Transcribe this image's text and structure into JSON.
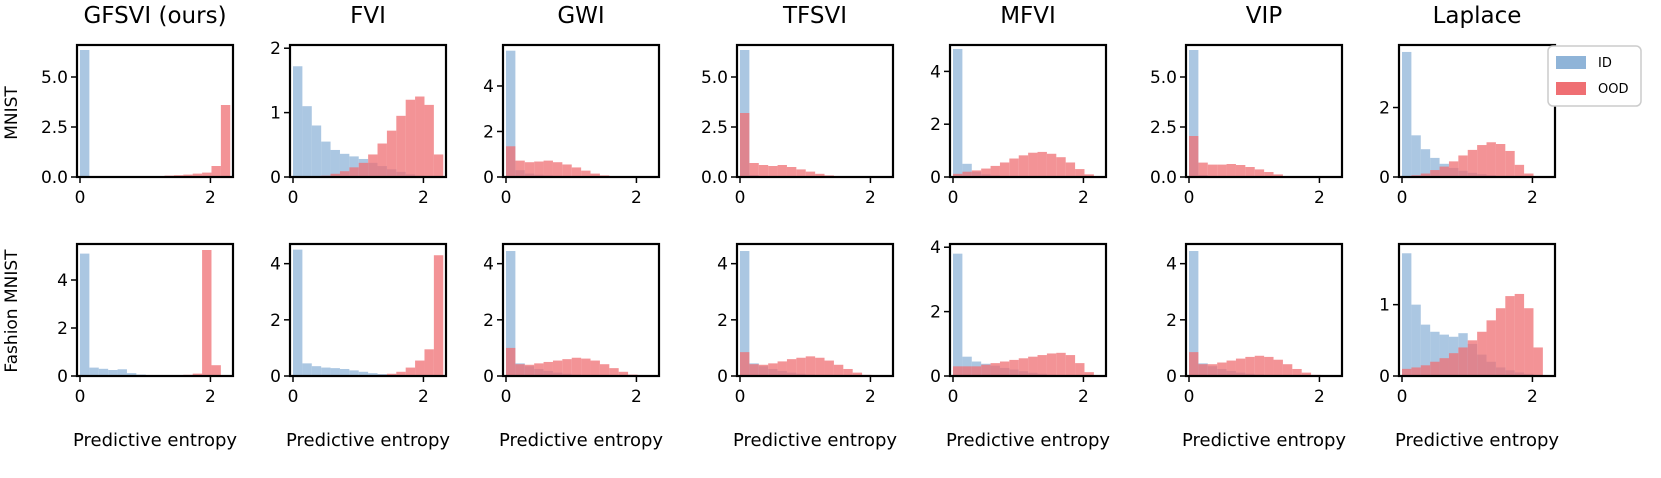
{
  "colors": {
    "id": "#8fb4d8",
    "ood": "#ef6f73"
  },
  "legend": {
    "id_label": "ID",
    "ood_label": "OOD"
  },
  "row_labels": [
    "MNIST",
    "Fashion MNIST"
  ],
  "chart_data": {
    "type": "histogram-grid",
    "xlabel": "Predictive entropy",
    "x_range": [
      0,
      2.3
    ],
    "bin_width": 0.144,
    "columns": [
      "GFSVI (ours)",
      "FVI",
      "GWI",
      "TFSVI",
      "MFVI",
      "VIP",
      "Laplace"
    ],
    "x_ticks": [
      0,
      2
    ],
    "panels": [
      [
        {
          "ylim": [
            0,
            6.6
          ],
          "yticks": [
            "0.0",
            "2.5",
            "5.0"
          ],
          "ytick_values": [
            0,
            2.5,
            5.0
          ],
          "id": [
            6.35,
            0,
            0,
            0,
            0,
            0,
            0,
            0,
            0,
            0,
            0,
            0,
            0,
            0,
            0,
            0
          ],
          "ood": [
            0,
            0,
            0,
            0,
            0.01,
            0.02,
            0.03,
            0.04,
            0.05,
            0.07,
            0.09,
            0.12,
            0.17,
            0.22,
            0.55,
            3.6
          ]
        },
        {
          "ylim": [
            0,
            2.05
          ],
          "yticks": [
            "0",
            "1",
            "2"
          ],
          "ytick_values": [
            0,
            1,
            2
          ],
          "id": [
            1.72,
            1.1,
            0.8,
            0.55,
            0.42,
            0.36,
            0.32,
            0.28,
            0.22,
            0.17,
            0.12,
            0.08,
            0.04,
            0.02,
            0,
            0
          ],
          "ood": [
            0,
            0,
            0,
            0.02,
            0.05,
            0.09,
            0.15,
            0.22,
            0.35,
            0.52,
            0.72,
            0.95,
            1.2,
            1.25,
            1.12,
            0.35
          ]
        },
        {
          "ylim": [
            0,
            5.8
          ],
          "yticks": [
            "0",
            "2",
            "4"
          ],
          "ytick_values": [
            0,
            2,
            4
          ],
          "id": [
            5.55,
            0.3,
            0.15,
            0.1,
            0.07,
            0.05,
            0.03,
            0.02,
            0.01,
            0,
            0,
            0,
            0,
            0,
            0,
            0
          ],
          "ood": [
            1.35,
            0.72,
            0.65,
            0.68,
            0.72,
            0.65,
            0.55,
            0.42,
            0.28,
            0.15,
            0.07,
            0.03,
            0,
            0,
            0,
            0
          ]
        },
        {
          "ylim": [
            0,
            6.6
          ],
          "yticks": [
            "0.0",
            "2.5",
            "5.0"
          ],
          "ytick_values": [
            0,
            2.5,
            5.0
          ],
          "id": [
            6.35,
            0.1,
            0.05,
            0.03,
            0.02,
            0.01,
            0,
            0,
            0,
            0,
            0,
            0,
            0,
            0,
            0,
            0
          ],
          "ood": [
            3.2,
            0.7,
            0.6,
            0.55,
            0.6,
            0.5,
            0.38,
            0.27,
            0.16,
            0.08,
            0.03,
            0.01,
            0,
            0,
            0,
            0
          ]
        },
        {
          "ylim": [
            0,
            5.0
          ],
          "yticks": [
            "0",
            "2",
            "4"
          ],
          "ytick_values": [
            0,
            2,
            4
          ],
          "id": [
            4.85,
            0.5,
            0.2,
            0.1,
            0.06,
            0.04,
            0.02,
            0.01,
            0,
            0,
            0,
            0,
            0,
            0,
            0,
            0
          ],
          "ood": [
            0.12,
            0.2,
            0.25,
            0.32,
            0.42,
            0.55,
            0.7,
            0.82,
            0.92,
            0.95,
            0.88,
            0.75,
            0.55,
            0.3,
            0.1,
            0.02
          ]
        },
        {
          "ylim": [
            0,
            6.6
          ],
          "yticks": [
            "0.0",
            "2.5",
            "5.0"
          ],
          "ytick_values": [
            0,
            2.5,
            5.0
          ],
          "id": [
            6.35,
            0.1,
            0.05,
            0.03,
            0.02,
            0.01,
            0,
            0,
            0,
            0,
            0,
            0,
            0,
            0,
            0,
            0
          ],
          "ood": [
            2.05,
            0.72,
            0.62,
            0.62,
            0.65,
            0.6,
            0.5,
            0.38,
            0.25,
            0.13,
            0.05,
            0.02,
            0,
            0,
            0,
            0
          ]
        },
        {
          "ylim": [
            0,
            3.8
          ],
          "yticks": [
            "0",
            "2"
          ],
          "ytick_values": [
            0,
            2
          ],
          "id": [
            3.6,
            1.2,
            0.8,
            0.55,
            0.38,
            0.26,
            0.18,
            0.12,
            0.08,
            0.05,
            0.03,
            0.01,
            0,
            0,
            0,
            0
          ],
          "ood": [
            0,
            0.05,
            0.1,
            0.2,
            0.3,
            0.45,
            0.62,
            0.78,
            0.92,
            1.0,
            0.95,
            0.75,
            0.35,
            0.1,
            0,
            0
          ]
        }
      ],
      [
        {
          "ylim": [
            0,
            5.5
          ],
          "yticks": [
            "0",
            "2",
            "4"
          ],
          "ytick_values": [
            0,
            2,
            4
          ],
          "id": [
            5.1,
            0.35,
            0.3,
            0.25,
            0.28,
            0.12,
            0.06,
            0.03,
            0.02,
            0.01,
            0,
            0,
            0,
            0,
            0,
            0
          ],
          "ood": [
            0,
            0,
            0,
            0,
            0,
            0,
            0,
            0,
            0,
            0,
            0.02,
            0.05,
            0.1,
            5.25,
            0.45,
            0
          ]
        },
        {
          "ylim": [
            0,
            4.7
          ],
          "yticks": [
            "0",
            "2",
            "4"
          ],
          "ytick_values": [
            0,
            2,
            4
          ],
          "id": [
            4.5,
            0.45,
            0.35,
            0.3,
            0.28,
            0.25,
            0.2,
            0.15,
            0.1,
            0.07,
            0.04,
            0.02,
            0.01,
            0,
            0,
            0
          ],
          "ood": [
            0,
            0,
            0,
            0,
            0,
            0,
            0,
            0.01,
            0.02,
            0.04,
            0.08,
            0.15,
            0.3,
            0.55,
            0.95,
            4.3
          ]
        },
        {
          "ylim": [
            0,
            4.7
          ],
          "yticks": [
            "0",
            "2",
            "4"
          ],
          "ytick_values": [
            0,
            2,
            4
          ],
          "id": [
            4.45,
            0.45,
            0.35,
            0.25,
            0.18,
            0.12,
            0.08,
            0.05,
            0.03,
            0.02,
            0.01,
            0,
            0,
            0,
            0,
            0
          ],
          "ood": [
            1.0,
            0.42,
            0.4,
            0.45,
            0.5,
            0.55,
            0.6,
            0.65,
            0.62,
            0.55,
            0.42,
            0.28,
            0.15,
            0.05,
            0,
            0
          ]
        },
        {
          "ylim": [
            0,
            4.7
          ],
          "yticks": [
            "0",
            "2",
            "4"
          ],
          "ytick_values": [
            0,
            2,
            4
          ],
          "id": [
            4.45,
            0.45,
            0.35,
            0.25,
            0.18,
            0.12,
            0.08,
            0.05,
            0.03,
            0.02,
            0.01,
            0,
            0,
            0,
            0,
            0
          ],
          "ood": [
            0.85,
            0.42,
            0.4,
            0.45,
            0.52,
            0.6,
            0.65,
            0.7,
            0.65,
            0.55,
            0.4,
            0.25,
            0.12,
            0.04,
            0,
            0
          ]
        },
        {
          "ylim": [
            0,
            4.1
          ],
          "yticks": [
            "0",
            "2",
            "4"
          ],
          "ytick_values": [
            0,
            2,
            4
          ],
          "id": [
            3.8,
            0.6,
            0.45,
            0.38,
            0.32,
            0.25,
            0.2,
            0.15,
            0.1,
            0.07,
            0.04,
            0.02,
            0.01,
            0,
            0,
            0
          ],
          "ood": [
            0.3,
            0.3,
            0.3,
            0.35,
            0.4,
            0.45,
            0.5,
            0.55,
            0.6,
            0.65,
            0.7,
            0.72,
            0.65,
            0.4,
            0.12,
            0
          ]
        },
        {
          "ylim": [
            0,
            4.7
          ],
          "yticks": [
            "0",
            "2",
            "4"
          ],
          "ytick_values": [
            0,
            2,
            4
          ],
          "id": [
            4.45,
            0.45,
            0.35,
            0.25,
            0.18,
            0.12,
            0.08,
            0.05,
            0.03,
            0.02,
            0.01,
            0,
            0,
            0,
            0,
            0
          ],
          "ood": [
            0.85,
            0.42,
            0.42,
            0.48,
            0.55,
            0.62,
            0.68,
            0.72,
            0.68,
            0.58,
            0.42,
            0.25,
            0.12,
            0.04,
            0,
            0
          ]
        },
        {
          "ylim": [
            0,
            1.85
          ],
          "yticks": [
            "0",
            "1"
          ],
          "ytick_values": [
            0,
            1
          ],
          "id": [
            1.72,
            1.0,
            0.72,
            0.62,
            0.58,
            0.55,
            0.6,
            0.45,
            0.3,
            0.2,
            0.12,
            0.08,
            0.05,
            0.03,
            0.01,
            0
          ],
          "ood": [
            0.1,
            0.12,
            0.15,
            0.2,
            0.25,
            0.32,
            0.4,
            0.5,
            0.62,
            0.78,
            0.95,
            1.12,
            1.15,
            0.95,
            0.4,
            0
          ]
        }
      ]
    ]
  }
}
